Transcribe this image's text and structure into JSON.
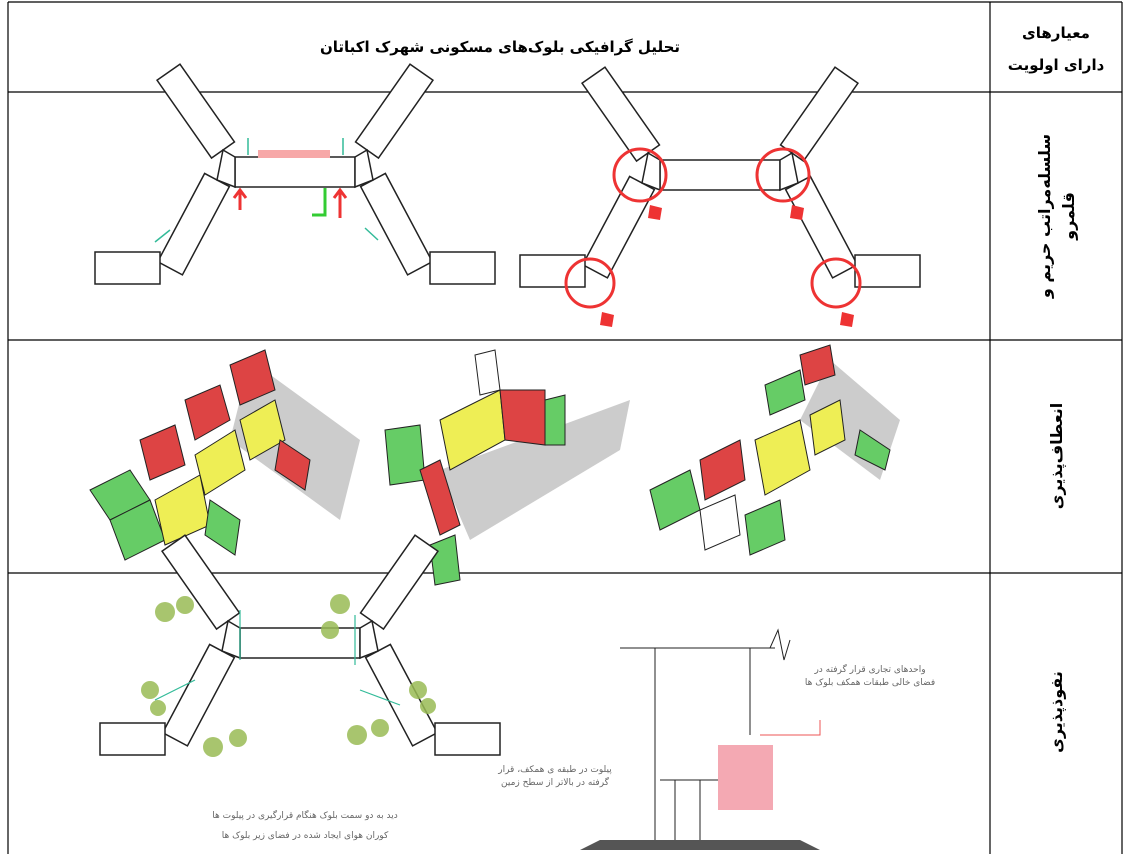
{
  "header": {
    "title": "تحلیل گرافیکی بلوک‌های مسکونی شهرک اکباتان",
    "criteria_lines": [
      "معیارهای",
      "دارای اولویت"
    ]
  },
  "rows": [
    {
      "label_lines": [
        "سلسله‌مراتب حریم و",
        "قلمرو"
      ]
    },
    {
      "label_lines": [
        "انعطاف‌پذیری"
      ]
    },
    {
      "label_lines": [
        "نفوذپذیری"
      ],
      "annotations": [
        "واحدهای تجاری قرار گرفته در",
        "فضای خالی طبقات همکف بلوک ها",
        "پیلوت در طبقه ی همکف، قرار",
        "گرفته در بالاتر از سطح زمین",
        "دید به دو سمت بلوک هنگام قرارگیری در پیلوت ها",
        "کوران هوای ایجاد شده در فضای زیر بلوک ها"
      ]
    }
  ]
}
